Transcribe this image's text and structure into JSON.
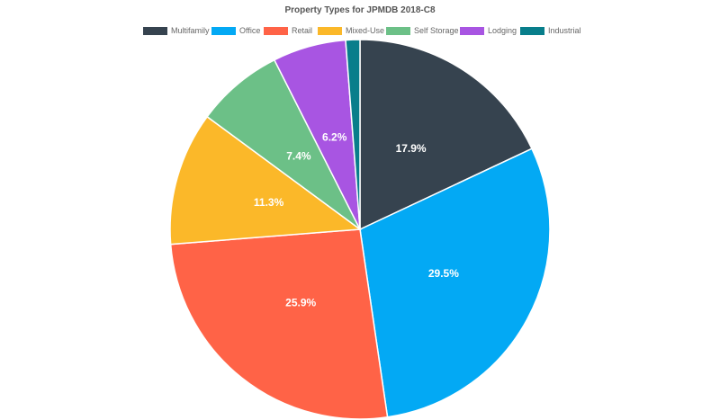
{
  "chart_data": {
    "type": "pie",
    "title": "Property Types for JPMDB 2018-C8",
    "legend_position": "top",
    "slices": [
      {
        "name": "Multifamily",
        "value": 17.9,
        "label": "17.9%",
        "color": "#36434f"
      },
      {
        "name": "Office",
        "value": 29.5,
        "label": "29.5%",
        "color": "#03a9f4"
      },
      {
        "name": "Retail",
        "value": 25.9,
        "label": "25.9%",
        "color": "#ff6347"
      },
      {
        "name": "Mixed-Use",
        "value": 11.3,
        "label": "11.3%",
        "color": "#fbb829"
      },
      {
        "name": "Self Storage",
        "value": 7.4,
        "label": "7.4%",
        "color": "#6cc087"
      },
      {
        "name": "Lodging",
        "value": 6.2,
        "label": "6.2%",
        "color": "#a855e2"
      },
      {
        "name": "Industrial",
        "value": 1.2,
        "label": "",
        "color": "#087e8b"
      }
    ]
  }
}
